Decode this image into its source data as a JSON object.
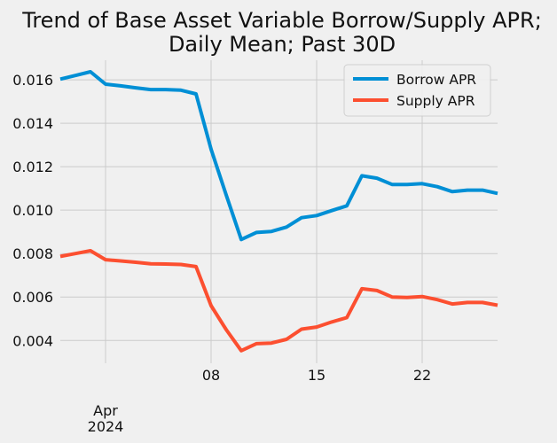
{
  "chart_data": {
    "type": "line",
    "title": "Trend of Base Asset Variable Borrow/Supply APR;\nDaily Mean; Past 30D",
    "title_lines": [
      "Trend of Base Asset Variable Borrow/Supply APR;",
      "Daily Mean; Past 30D"
    ],
    "xlabel": "",
    "ylabel": "",
    "x": [
      "2024-03-29",
      "2024-03-30",
      "2024-03-31",
      "2024-04-01",
      "2024-04-02",
      "2024-04-03",
      "2024-04-04",
      "2024-04-05",
      "2024-04-06",
      "2024-04-07",
      "2024-04-08",
      "2024-04-09",
      "2024-04-10",
      "2024-04-11",
      "2024-04-12",
      "2024-04-13",
      "2024-04-14",
      "2024-04-15",
      "2024-04-16",
      "2024-04-17",
      "2024-04-18",
      "2024-04-19",
      "2024-04-20",
      "2024-04-21",
      "2024-04-22",
      "2024-04-23",
      "2024-04-24",
      "2024-04-25",
      "2024-04-26",
      "2024-04-27"
    ],
    "xlim": [
      "2024-03-29",
      "2024-04-27"
    ],
    "x_ticks": [
      {
        "date": "2024-04-01",
        "label": "Apr",
        "sublabel": "2024"
      },
      {
        "date": "2024-04-08",
        "label": "08",
        "sublabel": ""
      },
      {
        "date": "2024-04-15",
        "label": "15",
        "sublabel": ""
      },
      {
        "date": "2024-04-22",
        "label": "22",
        "sublabel": ""
      }
    ],
    "ylim": [
      0.00295,
      0.0169
    ],
    "y_ticks": [
      "0.004",
      "0.006",
      "0.008",
      "0.010",
      "0.012",
      "0.014",
      "0.016"
    ],
    "series": [
      {
        "name": "Borrow APR",
        "color": "#008fd5",
        "values": [
          0.01603,
          0.0162,
          0.01637,
          0.0158,
          0.01572,
          0.01563,
          0.01555,
          0.01555,
          0.01552,
          0.01535,
          0.0128,
          0.0107,
          0.00865,
          0.00897,
          0.00902,
          0.00922,
          0.00965,
          0.00975,
          0.00998,
          0.0102,
          0.01158,
          0.01147,
          0.01118,
          0.01118,
          0.01122,
          0.01108,
          0.01085,
          0.01092,
          0.01092,
          0.01077
        ]
      },
      {
        "name": "Supply APR",
        "color": "#fc4f30",
        "values": [
          0.00787,
          0.008,
          0.00813,
          0.00772,
          0.00766,
          0.0076,
          0.00753,
          0.00752,
          0.0075,
          0.0074,
          0.0056,
          0.0045,
          0.00353,
          0.00385,
          0.00388,
          0.00405,
          0.00452,
          0.00462,
          0.00485,
          0.00505,
          0.00638,
          0.0063,
          0.006,
          0.00598,
          0.00602,
          0.00588,
          0.00568,
          0.00575,
          0.00575,
          0.00562
        ]
      }
    ],
    "grid": true,
    "legend_position": "top-right"
  }
}
